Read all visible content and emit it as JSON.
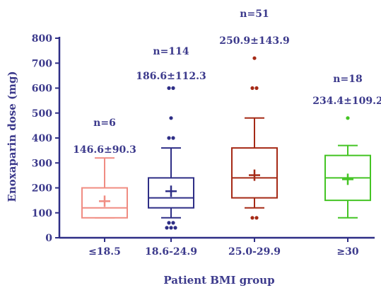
{
  "chart_data": {
    "type": "box",
    "xlabel": "Patient BMI group",
    "ylabel": "Enoxaparin dose (mg)",
    "ylim": [
      0,
      800
    ],
    "yticks": [
      0,
      100,
      200,
      300,
      400,
      500,
      600,
      700,
      800
    ],
    "grid": false,
    "categories": [
      "≤18.5",
      "18.6-24.9",
      "25.0-29.9",
      "≥30"
    ],
    "groups": [
      {
        "category": "≤18.5",
        "n_label": "n=6",
        "summary_label": "146.6±90.3",
        "color": "#f08c82",
        "whisker_low": 80,
        "q1": 80,
        "median": 120,
        "q3": 200,
        "whisker_high": 320,
        "mean": 146.6,
        "outliers": []
      },
      {
        "category": "18.6-24.9",
        "n_label": "n=114",
        "summary_label": "186.6±112.3",
        "color": "#2e2e86",
        "whisker_low": 80,
        "q1": 120,
        "median": 160,
        "q3": 240,
        "whisker_high": 360,
        "mean": 186.6,
        "outliers": [
          40,
          40,
          40,
          60,
          60,
          400,
          400,
          480,
          600,
          600
        ]
      },
      {
        "category": "25.0-29.9",
        "n_label": "n=51",
        "summary_label": "250.9±143.9",
        "color": "#a52a16",
        "whisker_low": 120,
        "q1": 160,
        "median": 240,
        "q3": 360,
        "whisker_high": 480,
        "mean": 250.9,
        "outliers": [
          80,
          80,
          600,
          600,
          720
        ]
      },
      {
        "category": "≥30",
        "n_label": "n=18",
        "summary_label": "234.4±109.2",
        "color": "#44c424",
        "whisker_low": 80,
        "q1": 150,
        "median": 240,
        "q3": 330,
        "whisker_high": 370,
        "mean": 234.4,
        "outliers": [
          480
        ]
      }
    ]
  }
}
